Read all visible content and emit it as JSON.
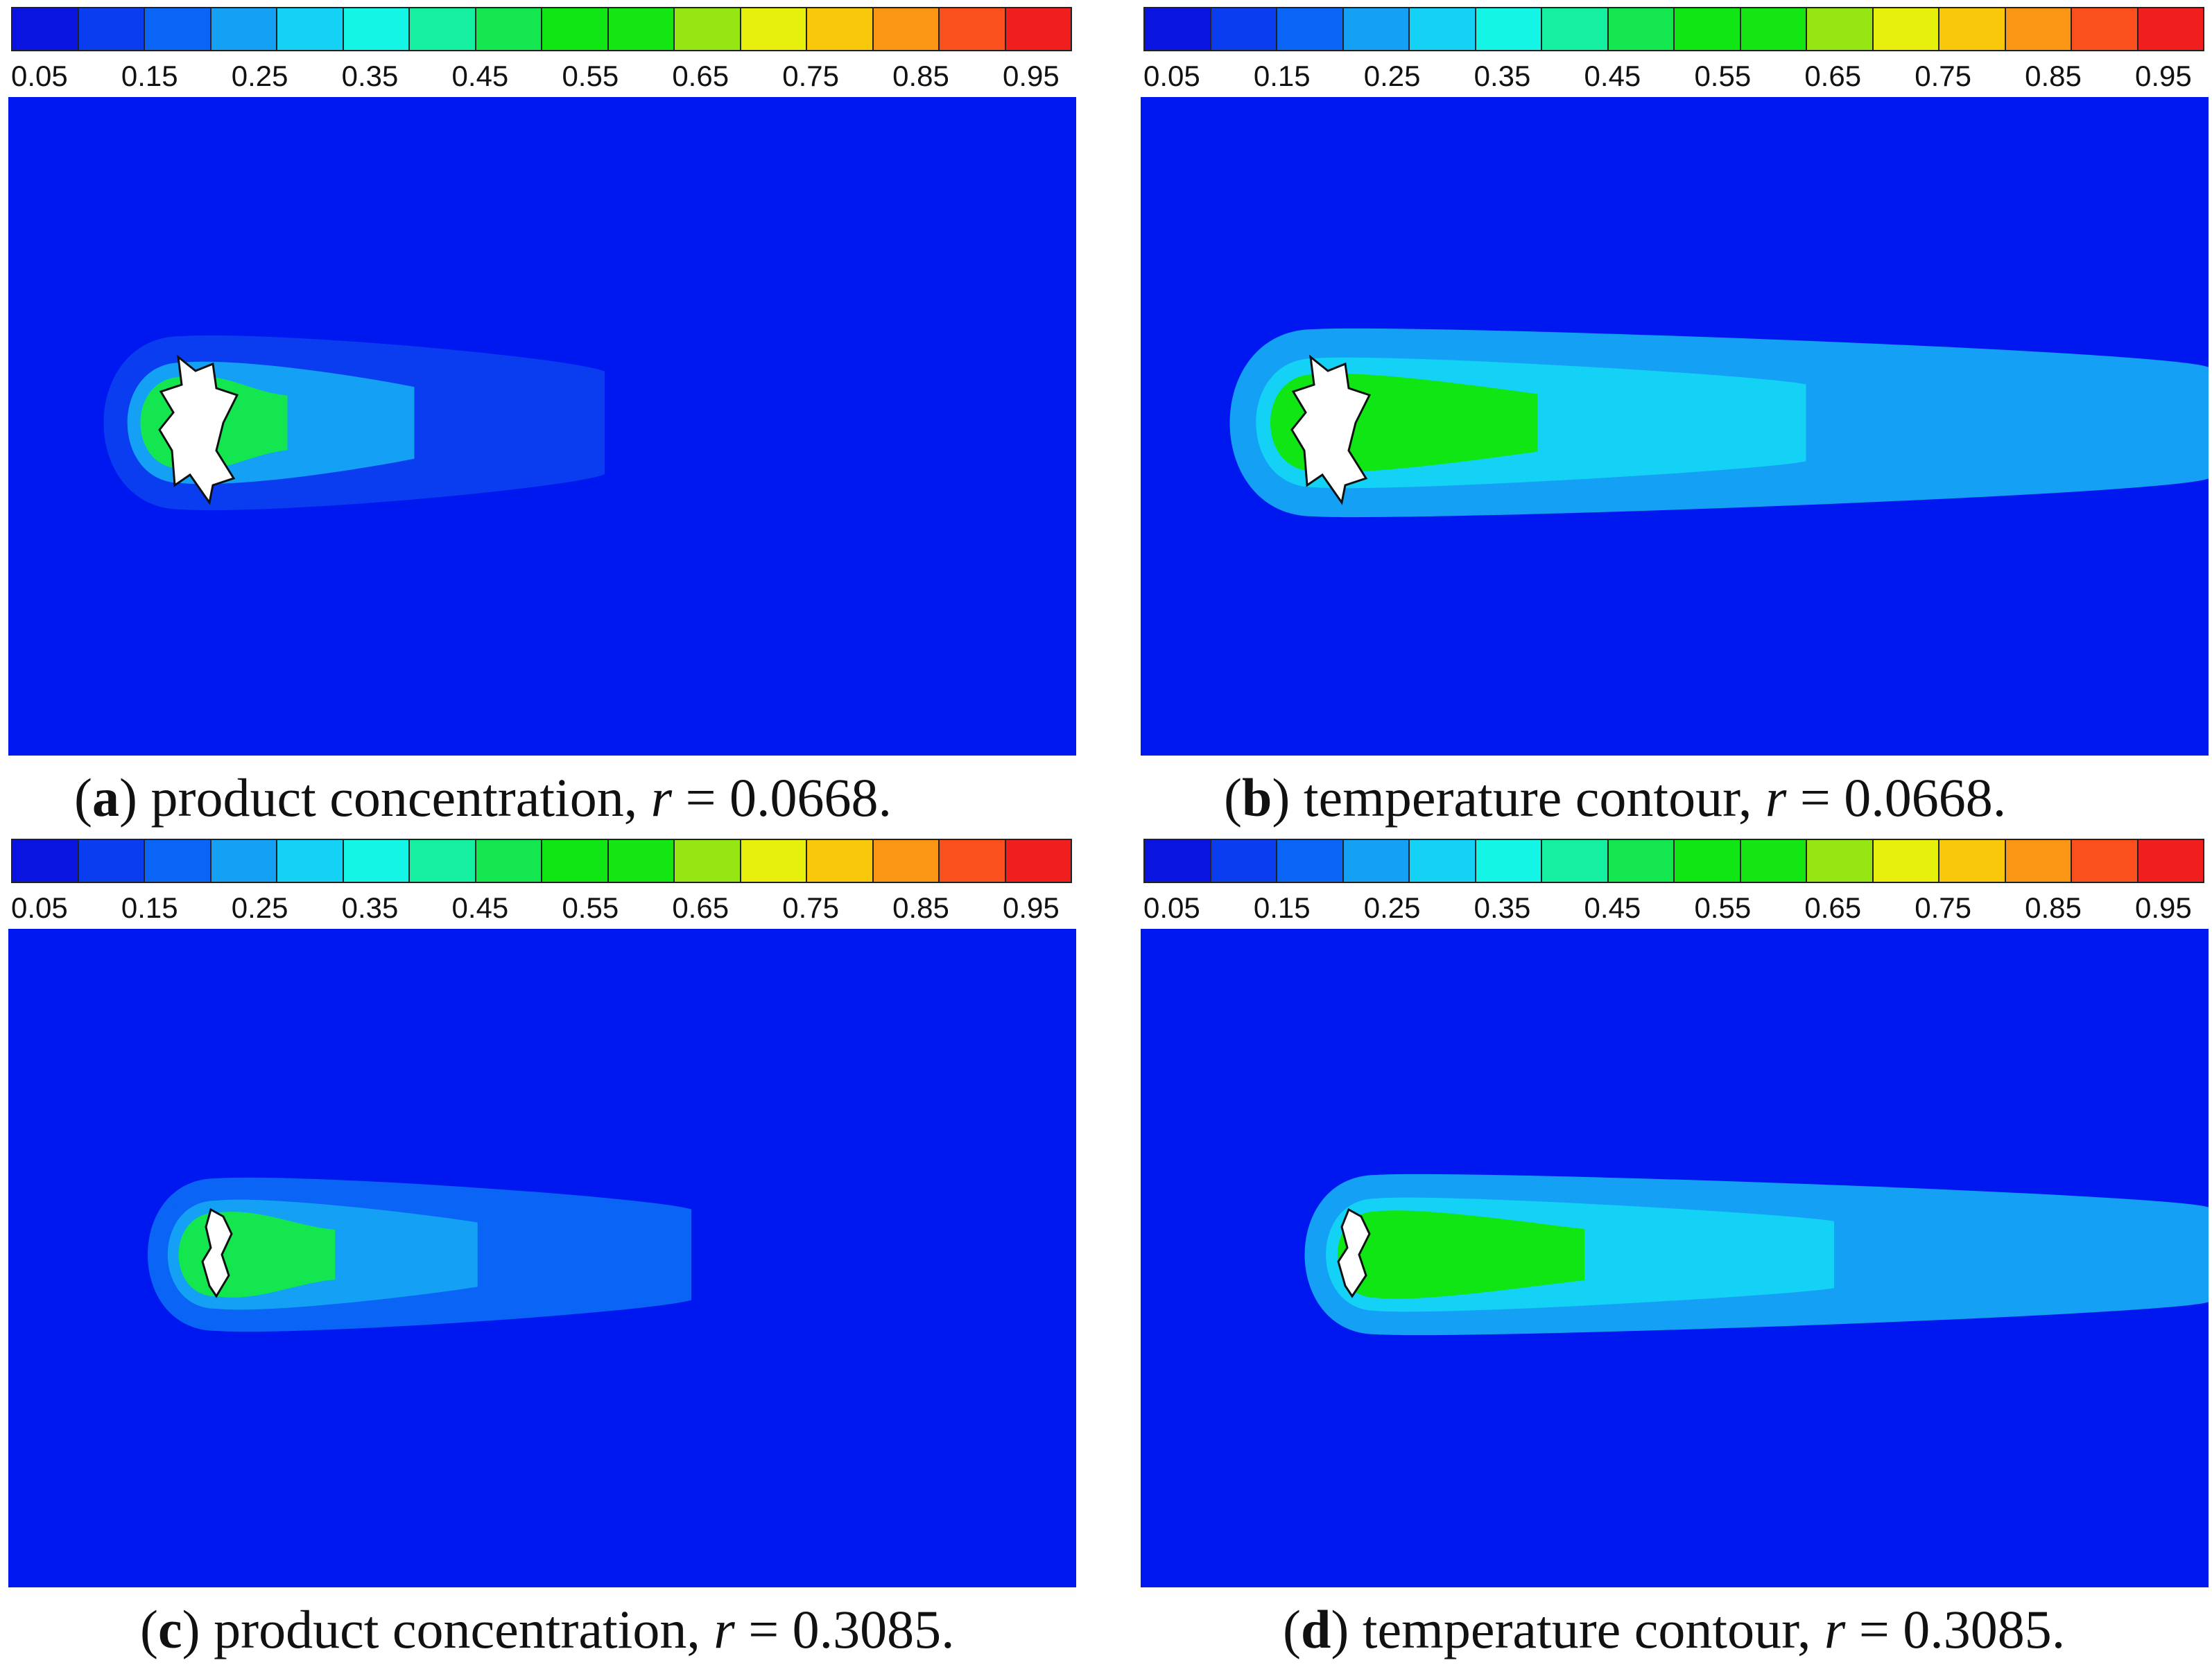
{
  "figure": {
    "colors": {
      "background": "#0018F0",
      "obstacle": "#FFFFFF",
      "obstacle_edge": "#111111"
    },
    "colormap": [
      "#0A14E0",
      "#0A3CF0",
      "#0A64F5",
      "#14A0F5",
      "#14D2F5",
      "#14F5E6",
      "#14F0A0",
      "#14E650",
      "#10E614",
      "#14E614",
      "#96E614",
      "#E6F00A",
      "#FAC80A",
      "#FA9614",
      "#FA501E",
      "#F01E1E"
    ]
  },
  "chart_data": [
    {
      "id": "a",
      "type": "heatmap",
      "subtype": "contour",
      "title": "product concentration",
      "panel_label": "a",
      "caption_text": "product concentration, ",
      "r_symbol": "r",
      "r_value": "0.0668",
      "caption_tail": " = 0.0668.",
      "colorbar_ticks": [
        "0.05",
        "0.15",
        "0.25",
        "0.35",
        "0.45",
        "0.55",
        "0.65",
        "0.75",
        "0.85",
        "0.95"
      ],
      "value_range": [
        0.0,
        1.0
      ],
      "plume": {
        "core_value": 0.45,
        "mid_value": 0.2,
        "tail_value": 0.12,
        "extent_fraction": 0.55
      }
    },
    {
      "id": "b",
      "type": "heatmap",
      "subtype": "contour",
      "title": "temperature contour",
      "panel_label": "b",
      "caption_text": "temperature contour, ",
      "r_symbol": "r",
      "r_value": "0.0668",
      "caption_tail": " = 0.0668.",
      "colorbar_ticks": [
        "0.05",
        "0.15",
        "0.25",
        "0.35",
        "0.45",
        "0.55",
        "0.65",
        "0.75",
        "0.85",
        "0.95"
      ],
      "value_range": [
        0.0,
        1.0
      ],
      "plume": {
        "core_value": 0.5,
        "mid_value": 0.3,
        "tail_value": 0.22,
        "extent_fraction": 1.0
      }
    },
    {
      "id": "c",
      "type": "heatmap",
      "subtype": "contour",
      "title": "product concentration",
      "panel_label": "c",
      "caption_text": "product concentration, ",
      "r_symbol": "r",
      "r_value": "0.3085",
      "caption_tail": " = 0.3085.",
      "colorbar_ticks": [
        "0.05",
        "0.15",
        "0.25",
        "0.35",
        "0.45",
        "0.55",
        "0.65",
        "0.75",
        "0.85",
        "0.95"
      ],
      "value_range": [
        0.0,
        1.0
      ],
      "plume": {
        "core_value": 0.45,
        "mid_value": 0.22,
        "tail_value": 0.15,
        "extent_fraction": 0.63
      }
    },
    {
      "id": "d",
      "type": "heatmap",
      "subtype": "contour",
      "title": "temperature contour",
      "panel_label": "d",
      "caption_text": "temperature contour, ",
      "r_symbol": "r",
      "r_value": "0.3085",
      "caption_tail": " = 0.3085.",
      "colorbar_ticks": [
        "0.05",
        "0.15",
        "0.25",
        "0.35",
        "0.45",
        "0.55",
        "0.65",
        "0.75",
        "0.85",
        "0.95"
      ],
      "value_range": [
        0.0,
        1.0
      ],
      "plume": {
        "core_value": 0.5,
        "mid_value": 0.3,
        "tail_value": 0.24,
        "extent_fraction": 1.0
      }
    }
  ]
}
